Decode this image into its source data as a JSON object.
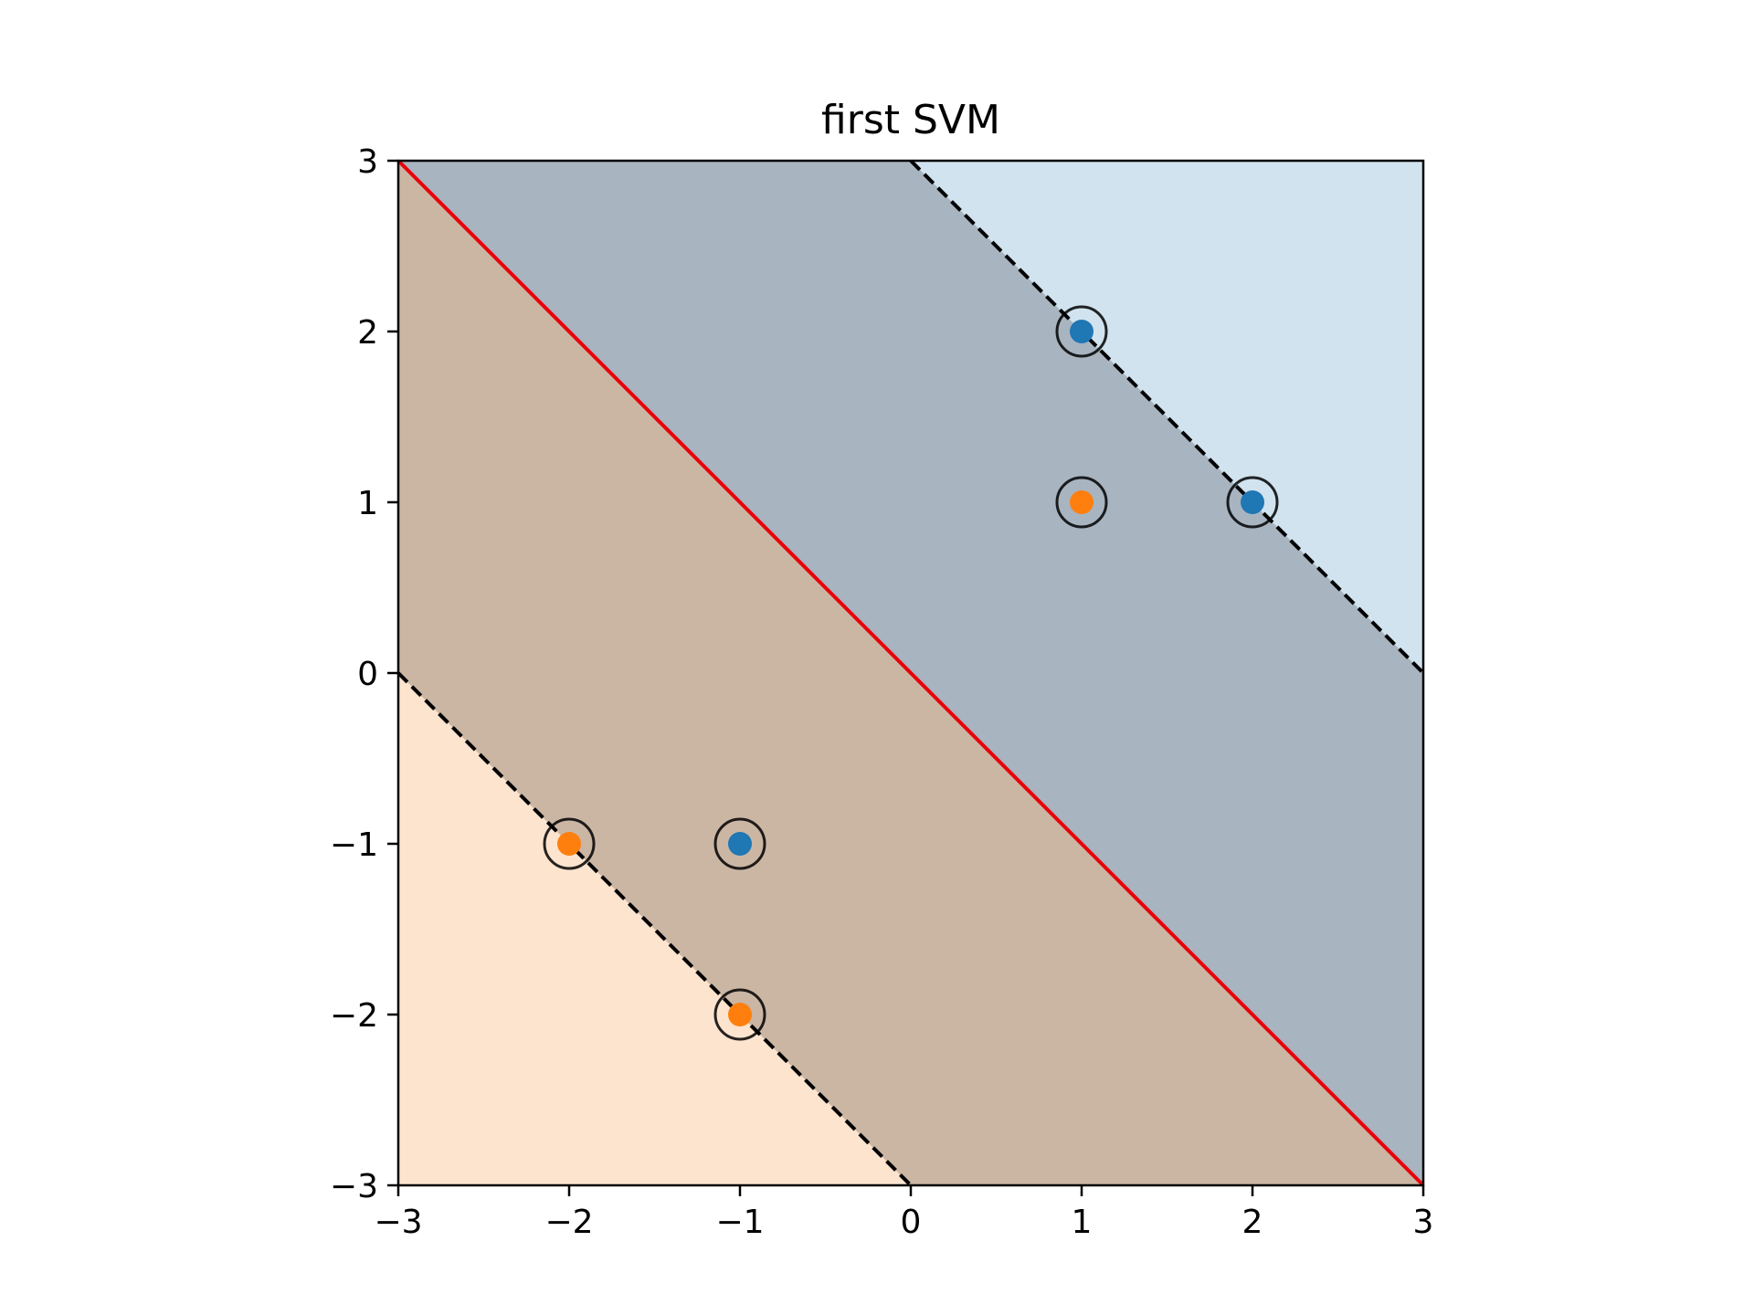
{
  "chart_data": {
    "type": "scatter",
    "title": "first SVM",
    "xlabel": "",
    "ylabel": "",
    "xlim": [
      -3,
      3
    ],
    "ylim": [
      -3,
      3
    ],
    "xticks": [
      -3,
      -2,
      -1,
      0,
      1,
      2,
      3
    ],
    "yticks": [
      -3,
      -2,
      -1,
      0,
      1,
      2,
      3
    ],
    "xtick_labels": [
      "−3",
      "−2",
      "−1",
      "0",
      "1",
      "2",
      "3"
    ],
    "ytick_labels": [
      "−3",
      "−2",
      "−1",
      "0",
      "1",
      "2",
      "3"
    ],
    "grid": false,
    "regions": {
      "upper_right_fill": "#d1e3ef",
      "upper_margin_fill": "#a8b4c0",
      "lower_margin_fill": "#cbb6a4",
      "lower_left_fill": "#fde4cf"
    },
    "decision_boundary": {
      "intercept": 0,
      "slope": -1,
      "color": "#e8000b"
    },
    "margins": [
      {
        "intercept": 3,
        "slope": -1,
        "color": "#000000",
        "style": "dashed"
      },
      {
        "intercept": -3,
        "slope": -1,
        "color": "#000000",
        "style": "dashed"
      }
    ],
    "series": [
      {
        "color": "#1f77b4",
        "points": [
          [
            1,
            2
          ],
          [
            2,
            1
          ],
          [
            -1,
            -1
          ]
        ]
      },
      {
        "color": "#ff7f0e",
        "points": [
          [
            1,
            1
          ],
          [
            -2,
            -1
          ],
          [
            -1,
            -2
          ]
        ]
      }
    ],
    "support_vectors": [
      [
        1,
        2
      ],
      [
        2,
        1
      ],
      [
        -1,
        -1
      ],
      [
        1,
        1
      ],
      [
        -2,
        -1
      ],
      [
        -1,
        -2
      ]
    ]
  }
}
